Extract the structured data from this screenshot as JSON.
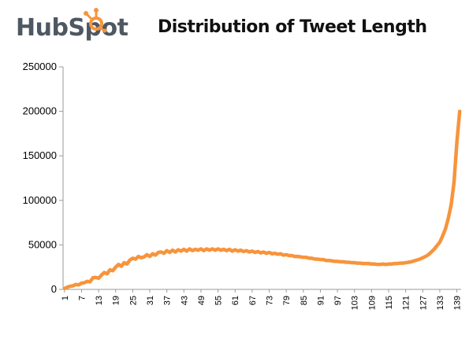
{
  "header": {
    "logo_text": "HubSpot",
    "title": "Distribution of Tweet Length"
  },
  "colors": {
    "series": "#f7943c",
    "logo_gray": "#4d5862",
    "logo_orange": "#f7943c"
  },
  "icons": {
    "logo": "hubspot-sprocket-icon"
  },
  "chart_data": {
    "type": "line",
    "title": "Distribution of Tweet Length",
    "xlabel": "",
    "ylabel": "",
    "xlim": [
      1,
      140
    ],
    "ylim": [
      0,
      250000
    ],
    "y_ticks": [
      0,
      50000,
      100000,
      150000,
      200000,
      250000
    ],
    "x_ticks": [
      1,
      7,
      13,
      19,
      25,
      31,
      37,
      43,
      49,
      55,
      61,
      67,
      73,
      79,
      85,
      91,
      97,
      103,
      109,
      115,
      121,
      127,
      133,
      139
    ],
    "grid": false,
    "legend": "none",
    "series": [
      {
        "x": [
          1,
          2,
          3,
          4,
          5,
          6,
          7,
          8,
          9,
          10,
          11,
          12,
          13,
          14,
          15,
          16,
          17,
          18,
          19,
          20,
          21,
          22,
          23,
          24,
          25,
          26,
          27,
          28,
          29,
          30,
          31,
          32,
          33,
          34,
          35,
          36,
          37,
          38,
          39,
          40,
          41,
          42,
          43,
          44,
          45,
          46,
          47,
          48,
          49,
          50,
          51,
          52,
          53,
          54,
          55,
          56,
          57,
          58,
          59,
          60,
          61,
          62,
          63,
          64,
          65,
          66,
          67,
          68,
          69,
          70,
          71,
          72,
          73,
          74,
          75,
          76,
          77,
          78,
          79,
          80,
          81,
          82,
          83,
          84,
          85,
          86,
          87,
          88,
          89,
          90,
          91,
          92,
          93,
          94,
          95,
          96,
          97,
          98,
          99,
          100,
          101,
          102,
          103,
          104,
          105,
          106,
          107,
          108,
          109,
          110,
          111,
          112,
          113,
          114,
          115,
          116,
          117,
          118,
          119,
          120,
          121,
          122,
          123,
          124,
          125,
          126,
          127,
          128,
          129,
          130,
          131,
          132,
          133,
          134,
          135,
          136,
          137,
          138,
          139,
          140
        ],
        "values": [
          1000,
          2500,
          3500,
          4000,
          5500,
          5000,
          7000,
          7500,
          9000,
          8500,
          13000,
          13500,
          12500,
          16000,
          19000,
          17500,
          22000,
          21000,
          25000,
          28000,
          26000,
          30000,
          28500,
          33000,
          35000,
          34000,
          37000,
          35500,
          36500,
          39000,
          37000,
          40000,
          38500,
          41500,
          42000,
          40500,
          43500,
          41500,
          44000,
          42000,
          44500,
          43000,
          45000,
          43000,
          45500,
          43500,
          45000,
          44000,
          45500,
          43500,
          45500,
          44000,
          45500,
          44000,
          45500,
          44000,
          45000,
          43500,
          45000,
          43000,
          44500,
          43000,
          44000,
          42500,
          43500,
          42000,
          43000,
          41500,
          42500,
          41000,
          42000,
          40500,
          41500,
          40000,
          40500,
          39500,
          40000,
          38500,
          39000,
          38000,
          38000,
          37000,
          37000,
          36500,
          36000,
          36000,
          35000,
          35000,
          34000,
          34000,
          33500,
          33500,
          32500,
          32500,
          32000,
          31500,
          31500,
          31000,
          31000,
          30500,
          30500,
          30000,
          30000,
          29500,
          29500,
          29000,
          29000,
          29000,
          28500,
          28500,
          28000,
          28000,
          28500,
          28000,
          28500,
          28500,
          29000,
          29000,
          29500,
          29500,
          30000,
          30500,
          31000,
          32000,
          33000,
          34000,
          35500,
          37000,
          39000,
          42000,
          45000,
          49000,
          53000,
          60000,
          68000,
          80000,
          95000,
          120000,
          165000,
          200000
        ]
      }
    ]
  }
}
